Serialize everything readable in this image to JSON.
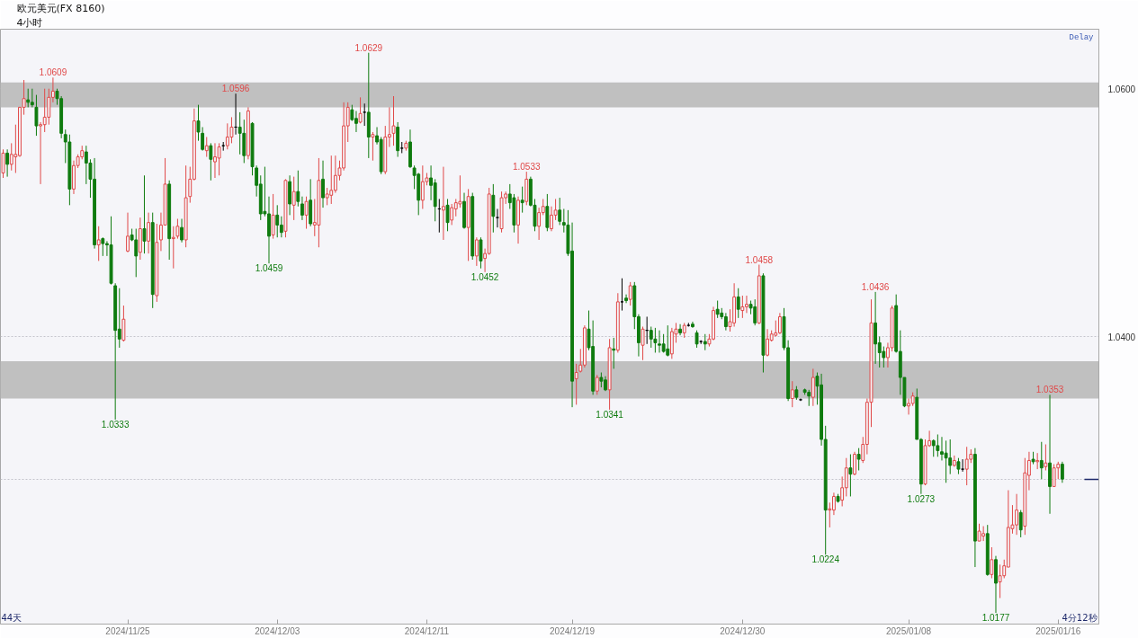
{
  "chart_data": {
    "type": "candlestick",
    "title": "欧元美元(FX 8160)",
    "subtitle": "4小时",
    "categories": [
      null,
      null,
      null,
      null,
      null,
      null,
      null,
      null,
      null,
      null,
      null,
      null,
      null,
      null,
      null,
      null,
      null,
      null,
      null,
      null,
      null,
      null,
      null,
      null,
      null,
      null,
      null,
      null,
      null,
      null,
      "2024/11/25",
      null,
      null,
      null,
      null,
      null,
      null,
      null,
      null,
      null,
      null,
      null,
      null,
      null,
      null,
      null,
      null,
      null,
      null,
      null,
      null,
      null,
      null,
      null,
      null,
      null,
      null,
      null,
      null,
      null,
      null,
      null,
      null,
      null,
      null,
      null,
      "2024/12/03",
      null,
      null,
      null,
      null,
      null,
      null,
      null,
      null,
      null,
      null,
      null,
      null,
      null,
      null,
      null,
      null,
      null,
      null,
      null,
      null,
      null,
      null,
      null,
      null,
      null,
      null,
      null,
      null,
      null,
      null,
      null,
      null,
      null,
      null,
      null,
      "2024/12/11",
      null,
      null,
      null,
      null,
      null,
      null,
      null,
      null,
      null,
      null,
      null,
      null,
      null,
      null,
      null,
      null,
      null,
      null,
      null,
      null,
      null,
      null,
      null,
      null,
      null,
      null,
      null,
      null,
      null,
      null,
      null,
      null,
      null,
      null,
      "2024/12/19",
      null,
      null,
      null,
      null,
      null,
      null,
      null,
      null,
      null,
      null,
      null,
      null,
      null,
      null,
      null,
      null,
      null,
      null,
      null,
      null,
      null,
      null,
      null,
      null,
      null,
      null,
      null,
      null,
      null,
      null,
      null,
      null,
      null,
      null,
      null,
      null,
      null,
      null,
      null,
      null,
      "2024/12/30",
      null,
      null,
      null,
      null,
      null,
      null,
      null,
      null,
      null,
      null,
      null,
      null,
      null,
      null,
      null,
      null,
      null,
      null,
      null,
      null,
      null,
      null,
      null,
      null,
      null,
      null,
      null,
      null,
      null,
      null,
      null,
      null,
      null,
      null,
      null,
      null,
      null,
      null,
      null,
      "2025/01/08",
      null,
      null,
      null,
      null,
      null,
      null,
      null,
      null,
      null,
      null,
      null,
      null,
      null,
      null,
      null,
      null,
      null,
      null,
      null,
      null,
      null,
      null,
      null,
      null,
      null,
      null,
      null,
      null,
      null,
      null,
      null,
      null,
      null,
      null,
      null,
      "2025/01/16",
      null
    ],
    "ohlc": [
      [
        1.0532,
        1.0551,
        1.0528,
        1.0548
      ],
      [
        1.0548,
        1.0551,
        1.0529,
        1.0539
      ],
      [
        1.0539,
        1.0556,
        1.0534,
        1.0547
      ],
      [
        1.0545,
        1.0571,
        1.0532,
        1.0547
      ],
      [
        1.0546,
        1.0585,
        1.0545,
        1.0585
      ],
      [
        1.0585,
        1.0607,
        1.0579,
        1.0592
      ],
      [
        1.0591,
        1.06,
        1.0585,
        1.0589
      ],
      [
        1.0589,
        1.06,
        1.0585,
        1.0587
      ],
      [
        1.0585,
        1.0595,
        1.0562,
        1.057
      ],
      [
        1.057,
        1.0573,
        1.0523,
        1.0571
      ],
      [
        1.0571,
        1.06,
        1.0565,
        1.0577
      ],
      [
        1.0577,
        1.06,
        1.0571,
        1.0593
      ],
      [
        1.0593,
        1.0609,
        1.0589,
        1.0598
      ],
      [
        1.0598,
        1.06,
        1.0587,
        1.0592
      ],
      [
        1.0592,
        1.0594,
        1.056,
        1.0564
      ],
      [
        1.0563,
        1.0567,
        1.054,
        1.0557
      ],
      [
        1.0557,
        1.0563,
        1.0506,
        1.0519
      ],
      [
        1.0519,
        1.0542,
        1.0515,
        1.0538
      ],
      [
        1.0538,
        1.0547,
        1.0536,
        1.0545
      ],
      [
        1.0545,
        1.0554,
        1.0543,
        1.055
      ],
      [
        1.0549,
        1.0554,
        1.0523,
        1.054
      ],
      [
        1.054,
        1.0543,
        1.0512,
        1.0527
      ],
      [
        1.0527,
        1.0544,
        1.0471,
        1.0474
      ],
      [
        1.0474,
        1.0489,
        1.0461,
        1.0478
      ],
      [
        1.0479,
        1.048,
        1.0465,
        1.0475
      ],
      [
        1.0475,
        1.0477,
        1.0465,
        1.0474
      ],
      [
        1.0474,
        1.0497,
        1.0442,
        1.0443
      ],
      [
        1.0441,
        1.0443,
        1.0333,
        1.0405
      ],
      [
        1.0406,
        1.0439,
        1.0391,
        1.0398
      ],
      [
        1.0397,
        1.0425,
        1.0396,
        1.0414
      ],
      [
        1.0469,
        1.05,
        1.0468,
        1.0481
      ],
      [
        1.0482,
        1.0487,
        1.0477,
        1.0478
      ],
      [
        1.0478,
        1.0487,
        1.0448,
        1.0465
      ],
      [
        1.0468,
        1.0496,
        1.0462,
        1.0487
      ],
      [
        1.0487,
        1.053,
        1.0467,
        1.0477
      ],
      [
        1.0477,
        1.05,
        1.0467,
        1.0492
      ],
      [
        1.0492,
        1.05,
        1.0423,
        1.0434
      ],
      [
        1.0433,
        1.0491,
        1.0428,
        1.0476
      ],
      [
        1.0478,
        1.05,
        1.0469,
        1.049
      ],
      [
        1.049,
        1.0544,
        1.049,
        1.0523
      ],
      [
        1.0523,
        1.0526,
        1.0462,
        1.0479
      ],
      [
        1.0479,
        1.0489,
        1.0455,
        1.048
      ],
      [
        1.0481,
        1.0495,
        1.0479,
        1.0489
      ],
      [
        1.0488,
        1.0495,
        1.0476,
        1.0478
      ],
      [
        1.0478,
        1.0538,
        1.0472,
        1.0512
      ],
      [
        1.0513,
        1.0537,
        1.0508,
        1.0527
      ],
      [
        1.0527,
        1.0584,
        1.0526,
        1.0574
      ],
      [
        1.0574,
        1.0587,
        1.0558,
        1.0565
      ],
      [
        1.0564,
        1.0569,
        1.055,
        1.0551
      ],
      [
        1.055,
        1.0561,
        1.0545,
        1.0554
      ],
      [
        1.0554,
        1.0556,
        1.0526,
        1.0543
      ],
      [
        1.0541,
        1.0556,
        1.0528,
        1.0545
      ],
      [
        1.0544,
        1.0556,
        1.053,
        1.0553
      ],
      [
        1.0554,
        1.0557,
        1.055,
        1.0554
      ],
      [
        1.0554,
        1.0572,
        1.0551,
        1.0561
      ],
      [
        1.0561,
        1.0577,
        1.0556,
        1.0569
      ],
      [
        1.0569,
        1.0596,
        1.0563,
        1.0569
      ],
      [
        1.0569,
        1.0581,
        1.0547,
        1.0564
      ],
      [
        1.0564,
        1.0575,
        1.054,
        1.0546
      ],
      [
        1.0546,
        1.0585,
        1.0543,
        1.0582
      ],
      [
        1.0572,
        1.0573,
        1.053,
        1.0537
      ],
      [
        1.0536,
        1.0538,
        1.0513,
        1.0522
      ],
      [
        1.0523,
        1.053,
        1.0494,
        1.0499
      ],
      [
        1.0501,
        1.0537,
        1.0497,
        1.0499
      ],
      [
        1.0499,
        1.0513,
        1.0459,
        1.0481
      ],
      [
        1.0482,
        1.0515,
        1.0479,
        1.0498
      ],
      [
        1.0498,
        1.0506,
        1.048,
        1.049
      ],
      [
        1.049,
        1.0497,
        1.048,
        1.0484
      ],
      [
        1.0485,
        1.0527,
        1.048,
        1.0526
      ],
      [
        1.0525,
        1.053,
        1.0498,
        1.0507
      ],
      [
        1.0506,
        1.0529,
        1.0494,
        1.0517
      ],
      [
        1.0517,
        1.0534,
        1.0505,
        1.0509
      ],
      [
        1.0507,
        1.0513,
        1.0494,
        1.0498
      ],
      [
        1.0498,
        1.0513,
        1.0487,
        1.0509
      ],
      [
        1.051,
        1.0527,
        1.0489,
        1.0491
      ],
      [
        1.049,
        1.0511,
        1.0481,
        1.0492
      ],
      [
        1.049,
        1.0544,
        1.0472,
        1.0526
      ],
      [
        1.0527,
        1.0542,
        1.0504,
        1.0512
      ],
      [
        1.0512,
        1.052,
        1.0506,
        1.0515
      ],
      [
        1.0514,
        1.0546,
        1.0507,
        1.0518
      ],
      [
        1.0518,
        1.0546,
        1.0516,
        1.053
      ],
      [
        1.053,
        1.0542,
        1.0526,
        1.0536
      ],
      [
        1.0536,
        1.0589,
        1.0534,
        1.057
      ],
      [
        1.057,
        1.0589,
        1.0557,
        1.0585
      ],
      [
        1.0583,
        1.0587,
        1.0574,
        1.0575
      ],
      [
        1.0576,
        1.0582,
        1.0565,
        1.0572
      ],
      [
        1.0573,
        1.0593,
        1.0572,
        1.058
      ],
      [
        1.0581,
        1.0588,
        1.057,
        1.0581
      ],
      [
        1.0581,
        1.0629,
        1.0544,
        1.0561
      ],
      [
        1.0561,
        1.0565,
        1.0542,
        1.0563
      ],
      [
        1.0562,
        1.0569,
        1.0555,
        1.0557
      ],
      [
        1.0559,
        1.0561,
        1.0531,
        1.0533
      ],
      [
        1.0533,
        1.057,
        1.0531,
        1.0561
      ],
      [
        1.0561,
        1.0585,
        1.0553,
        1.0563
      ],
      [
        1.0564,
        1.0594,
        1.0554,
        1.057
      ],
      [
        1.0569,
        1.0573,
        1.0545,
        1.055
      ],
      [
        1.0552,
        1.0557,
        1.0548,
        1.0552
      ],
      [
        1.0552,
        1.0558,
        1.055,
        1.0556
      ],
      [
        1.0557,
        1.0567,
        1.0536,
        1.0537
      ],
      [
        1.0536,
        1.0538,
        1.0519,
        1.053
      ],
      [
        1.0531,
        1.0532,
        1.0498,
        1.051
      ],
      [
        1.051,
        1.0538,
        1.0503,
        1.0525
      ],
      [
        1.0525,
        1.0532,
        1.0522,
        1.0528
      ],
      [
        1.0528,
        1.0538,
        1.051,
        1.0522
      ],
      [
        1.0524,
        1.0527,
        1.0493,
        1.0505
      ],
      [
        1.0503,
        1.0511,
        1.0484,
        1.0503
      ],
      [
        1.0502,
        1.0537,
        1.0478,
        1.0505
      ],
      [
        1.0506,
        1.0511,
        1.0485,
        1.0492
      ],
      [
        1.0494,
        1.0507,
        1.049,
        1.0504
      ],
      [
        1.0503,
        1.0511,
        1.0497,
        1.0508
      ],
      [
        1.0507,
        1.053,
        1.0504,
        1.0509
      ],
      [
        1.0509,
        1.0516,
        1.0487,
        1.0488
      ],
      [
        1.0488,
        1.0519,
        1.0461,
        1.0513
      ],
      [
        1.0513,
        1.0516,
        1.0462,
        1.0465
      ],
      [
        1.0465,
        1.048,
        1.0457,
        1.0478
      ],
      [
        1.0478,
        1.048,
        1.0455,
        1.0461
      ],
      [
        1.0463,
        1.0471,
        1.0452,
        1.0467
      ],
      [
        1.0467,
        1.052,
        1.0466,
        1.0515
      ],
      [
        1.0514,
        1.0523,
        1.0484,
        1.0497
      ],
      [
        1.0496,
        1.0503,
        1.0488,
        1.0496
      ],
      [
        1.0487,
        1.0517,
        1.0484,
        1.0512
      ],
      [
        1.0512,
        1.0517,
        1.0507,
        1.0515
      ],
      [
        1.0515,
        1.0523,
        1.0503,
        1.0508
      ],
      [
        1.0512,
        1.0515,
        1.0484,
        1.049
      ],
      [
        1.049,
        1.0513,
        1.0475,
        1.051
      ],
      [
        1.051,
        1.0521,
        1.05,
        1.0508
      ],
      [
        1.0509,
        1.0533,
        1.0506,
        1.0527
      ],
      [
        1.0527,
        1.0529,
        1.0505,
        1.0506
      ],
      [
        1.0506,
        1.0511,
        1.0485,
        1.0489
      ],
      [
        1.0489,
        1.0504,
        1.0478,
        1.05
      ],
      [
        1.05,
        1.0511,
        1.0498,
        1.0505
      ],
      [
        1.0505,
        1.0515,
        1.0485,
        1.0488
      ],
      [
        1.0487,
        1.0505,
        1.0485,
        1.0498
      ],
      [
        1.0498,
        1.0511,
        1.0494,
        1.0502
      ],
      [
        1.0502,
        1.0512,
        1.049,
        1.0493
      ],
      [
        1.0492,
        1.0503,
        1.0484,
        1.049
      ],
      [
        1.049,
        1.0502,
        1.0465,
        1.0467
      ],
      [
        1.0469,
        1.0492,
        1.0343,
        1.0364
      ],
      [
        1.0366,
        1.0378,
        1.0345,
        1.0371
      ],
      [
        1.0372,
        1.039,
        1.0371,
        1.0377
      ],
      [
        1.0377,
        1.0409,
        1.0375,
        1.0407
      ],
      [
        1.0406,
        1.0421,
        1.0389,
        1.0391
      ],
      [
        1.0392,
        1.0413,
        1.0353,
        1.0356
      ],
      [
        1.0356,
        1.0369,
        1.0353,
        1.0367
      ],
      [
        1.0367,
        1.0371,
        1.0359,
        1.0364
      ],
      [
        1.0365,
        1.0368,
        1.0356,
        1.0357
      ],
      [
        1.0357,
        1.0398,
        1.0341,
        1.0391
      ],
      [
        1.039,
        1.0399,
        1.0374,
        1.0389
      ],
      [
        1.0389,
        1.0435,
        1.0387,
        1.0428
      ],
      [
        1.0428,
        1.0447,
        1.0421,
        1.0428
      ],
      [
        1.0431,
        1.0434,
        1.0427,
        1.0429
      ],
      [
        1.043,
        1.0444,
        1.0425,
        1.0441
      ],
      [
        1.0441,
        1.0444,
        1.0406,
        1.0416
      ],
      [
        1.0416,
        1.0418,
        1.0384,
        1.0395
      ],
      [
        1.0393,
        1.0408,
        1.0381,
        1.0406
      ],
      [
        1.0405,
        1.0416,
        1.0394,
        1.0405
      ],
      [
        1.0405,
        1.0408,
        1.0391,
        1.0398
      ],
      [
        1.0398,
        1.0407,
        1.0387,
        1.0395
      ],
      [
        1.0394,
        1.0405,
        1.0387,
        1.0393
      ],
      [
        1.0394,
        1.0402,
        1.0387,
        1.0388
      ],
      [
        1.039,
        1.0409,
        1.0384,
        1.0385
      ],
      [
        1.0386,
        1.0407,
        1.0382,
        1.0404
      ],
      [
        1.0402,
        1.0411,
        1.0395,
        1.0406
      ],
      [
        1.0406,
        1.041,
        1.0401,
        1.0403
      ],
      [
        1.0403,
        1.0411,
        1.0399,
        1.0409
      ],
      [
        1.0409,
        1.0411,
        1.0408,
        1.0409
      ],
      [
        1.041,
        1.0412,
        1.0407,
        1.0408
      ],
      [
        1.0403,
        1.0405,
        1.0391,
        1.0394
      ],
      [
        1.0396,
        1.0397,
        1.0394,
        1.0396
      ],
      [
        1.0396,
        1.0402,
        1.0389,
        1.0394
      ],
      [
        1.0394,
        1.0402,
        1.0392,
        1.0398
      ],
      [
        1.0398,
        1.0424,
        1.0397,
        1.0421
      ],
      [
        1.0422,
        1.0429,
        1.0415,
        1.0418
      ],
      [
        1.0419,
        1.0423,
        1.0414,
        1.0416
      ],
      [
        1.0416,
        1.0419,
        1.0405,
        1.0408
      ],
      [
        1.0408,
        1.0422,
        1.0404,
        1.0412
      ],
      [
        1.0411,
        1.0443,
        1.0408,
        1.0432
      ],
      [
        1.0432,
        1.0439,
        1.0415,
        1.0422
      ],
      [
        1.0421,
        1.0433,
        1.0415,
        1.0424
      ],
      [
        1.0424,
        1.0433,
        1.0419,
        1.0426
      ],
      [
        1.0426,
        1.0429,
        1.0418,
        1.0423
      ],
      [
        1.0424,
        1.043,
        1.0409,
        1.0411
      ],
      [
        1.0411,
        1.0458,
        1.041,
        1.0449
      ],
      [
        1.0449,
        1.0451,
        1.0371,
        1.0385
      ],
      [
        1.0385,
        1.0406,
        1.0384,
        1.0398
      ],
      [
        1.0397,
        1.0405,
        1.0396,
        1.0402
      ],
      [
        1.0401,
        1.0413,
        1.04,
        1.0403
      ],
      [
        1.0403,
        1.0419,
        1.0402,
        1.0416
      ],
      [
        1.0416,
        1.0423,
        1.0389,
        1.0391
      ],
      [
        1.0391,
        1.0397,
        1.0348,
        1.035
      ],
      [
        1.035,
        1.0364,
        1.0343,
        1.0357
      ],
      [
        1.0357,
        1.036,
        1.0349,
        1.0351
      ],
      [
        1.0349,
        1.035,
        1.0348,
        1.0349
      ],
      [
        1.0357,
        1.0358,
        1.0353,
        1.0355
      ],
      [
        1.0355,
        1.0357,
        1.0344,
        1.0352
      ],
      [
        1.0351,
        1.0374,
        1.0344,
        1.0367
      ],
      [
        1.0368,
        1.0371,
        1.0345,
        1.036
      ],
      [
        1.0361,
        1.037,
        1.0312,
        1.0317
      ],
      [
        1.0317,
        1.0328,
        1.0224,
        1.026
      ],
      [
        1.026,
        1.0266,
        1.0246,
        1.0261
      ],
      [
        1.026,
        1.0274,
        1.0256,
        1.0271
      ],
      [
        1.0271,
        1.0273,
        1.0266,
        1.0267
      ],
      [
        1.0268,
        1.0287,
        1.0263,
        1.0278
      ],
      [
        1.0278,
        1.0302,
        1.0271,
        1.0294
      ],
      [
        1.0294,
        1.0305,
        1.0271,
        1.0289
      ],
      [
        1.0289,
        1.0307,
        1.0288,
        1.0305
      ],
      [
        1.0305,
        1.031,
        1.0292,
        1.0301
      ],
      [
        1.03,
        1.0319,
        1.0298,
        1.0313
      ],
      [
        1.0313,
        1.035,
        1.0305,
        1.0347
      ],
      [
        1.0347,
        1.043,
        1.0327,
        1.0411
      ],
      [
        1.0411,
        1.0436,
        1.0378,
        1.0394
      ],
      [
        1.0395,
        1.04,
        1.0375,
        1.0387
      ],
      [
        1.0388,
        1.0392,
        1.0375,
        1.0383
      ],
      [
        1.0383,
        1.0395,
        1.0375,
        1.0391
      ],
      [
        1.0391,
        1.0425,
        1.0388,
        1.0423
      ],
      [
        1.0425,
        1.0434,
        1.0387,
        1.0388
      ],
      [
        1.0388,
        1.0405,
        1.0353,
        1.0367
      ],
      [
        1.0367,
        1.0367,
        1.0343,
        1.0344
      ],
      [
        1.0344,
        1.035,
        1.0337,
        1.0346
      ],
      [
        1.0346,
        1.0355,
        1.0344,
        1.0352
      ],
      [
        1.0351,
        1.0358,
        1.0317,
        1.0317
      ],
      [
        1.0317,
        1.0318,
        1.0273,
        1.0281
      ],
      [
        1.0281,
        1.0317,
        1.028,
        1.0312
      ],
      [
        1.0312,
        1.0324,
        1.0311,
        1.0316
      ],
      [
        1.0316,
        1.0317,
        1.0303,
        1.0312
      ],
      [
        1.0312,
        1.0321,
        1.0303,
        1.0308
      ],
      [
        1.0307,
        1.0319,
        1.03,
        1.0305
      ],
      [
        1.0306,
        1.0316,
        1.0282,
        1.0302
      ],
      [
        1.0302,
        1.0317,
        1.0289,
        1.0296
      ],
      [
        1.0296,
        1.0304,
        1.0295,
        1.03
      ],
      [
        1.0299,
        1.0302,
        1.0289,
        1.0293
      ],
      [
        1.0293,
        1.0301,
        1.0291,
        1.0293
      ],
      [
        1.0293,
        1.0311,
        1.028,
        1.0301
      ],
      [
        1.0301,
        1.0309,
        1.0298,
        1.0305
      ],
      [
        1.0305,
        1.031,
        1.0214,
        1.0235
      ],
      [
        1.0235,
        1.0249,
        1.0235,
        1.0243
      ],
      [
        1.0239,
        1.0247,
        1.0235,
        1.0241
      ],
      [
        1.0241,
        1.0248,
        1.0207,
        1.0208
      ],
      [
        1.0208,
        1.023,
        1.0205,
        1.022
      ],
      [
        1.022,
        1.0223,
        1.0177,
        1.0201
      ],
      [
        1.0202,
        1.0216,
        1.0189,
        1.0207
      ],
      [
        1.0207,
        1.022,
        1.0205,
        1.0215
      ],
      [
        1.0214,
        1.0276,
        1.0214,
        1.0246
      ],
      [
        1.0245,
        1.0264,
        1.0241,
        1.0248
      ],
      [
        1.0248,
        1.0273,
        1.024,
        1.026
      ],
      [
        1.0258,
        1.026,
        1.0238,
        1.0244
      ],
      [
        1.0247,
        1.0302,
        1.024,
        1.029
      ],
      [
        1.0288,
        1.0307,
        1.0276,
        1.03
      ],
      [
        1.0301,
        1.0307,
        1.0297,
        1.0299
      ],
      [
        1.0299,
        1.0306,
        1.0293,
        1.03
      ],
      [
        1.03,
        1.0315,
        1.0285,
        1.0294
      ],
      [
        1.0295,
        1.0313,
        1.0292,
        1.0298
      ],
      [
        1.0298,
        1.0353,
        1.0257,
        1.0279
      ],
      [
        1.0279,
        1.0297,
        1.0279,
        1.0294
      ],
      [
        1.0294,
        1.0299,
        1.0285,
        1.0297
      ],
      [
        1.0297,
        1.0299,
        1.0282,
        1.0285
      ]
    ],
    "colors": [
      "#e04848",
      "#0f7b0f",
      "#e04848",
      "#e04848",
      "#e04848",
      "#e04848",
      "#0f7b0f",
      "#0f7b0f",
      "#0f7b0f",
      "#e04848",
      "#e04848",
      "#e04848",
      "#e04848",
      "#0f7b0f",
      "#0f7b0f",
      "#0f7b0f",
      "#0f7b0f",
      "#e04848",
      "#e04848",
      "#e04848",
      "#0f7b0f",
      "#0f7b0f",
      "#0f7b0f",
      "#e04848",
      "#0f7b0f",
      "#0f7b0f",
      "#0f7b0f",
      "#0f7b0f",
      "#0f7b0f",
      "#e04848",
      "#e04848",
      "#0f7b0f",
      "#0f7b0f",
      "#e04848",
      "#0f7b0f",
      "#e04848",
      "#0f7b0f",
      "#e04848",
      "#e04848",
      "#e04848",
      "#0f7b0f",
      "#e04848",
      "#e04848",
      "#0f7b0f",
      "#e04848",
      "#e04848",
      "#e04848",
      "#0f7b0f",
      "#0f7b0f",
      "#e04848",
      "#0f7b0f",
      "#e04848",
      "#e04848",
      "#000000",
      "#e04848",
      "#e04848",
      "#000000",
      "#0f7b0f",
      "#0f7b0f",
      "#e04848",
      "#0f7b0f",
      "#0f7b0f",
      "#0f7b0f",
      "#0f7b0f",
      "#0f7b0f",
      "#e04848",
      "#0f7b0f",
      "#0f7b0f",
      "#e04848",
      "#0f7b0f",
      "#e04848",
      "#0f7b0f",
      "#0f7b0f",
      "#e04848",
      "#0f7b0f",
      "#e04848",
      "#e04848",
      "#0f7b0f",
      "#e04848",
      "#e04848",
      "#e04848",
      "#e04848",
      "#e04848",
      "#e04848",
      "#0f7b0f",
      "#0f7b0f",
      "#e04848",
      "#000000",
      "#0f7b0f",
      "#e04848",
      "#0f7b0f",
      "#0f7b0f",
      "#e04848",
      "#e04848",
      "#e04848",
      "#0f7b0f",
      "#000000",
      "#e04848",
      "#0f7b0f",
      "#0f7b0f",
      "#0f7b0f",
      "#e04848",
      "#e04848",
      "#0f7b0f",
      "#0f7b0f",
      "#000000",
      "#e04848",
      "#0f7b0f",
      "#e04848",
      "#e04848",
      "#e04848",
      "#0f7b0f",
      "#e04848",
      "#0f7b0f",
      "#e04848",
      "#0f7b0f",
      "#e04848",
      "#e04848",
      "#0f7b0f",
      "#000000",
      "#e04848",
      "#e04848",
      "#0f7b0f",
      "#0f7b0f",
      "#e04848",
      "#0f7b0f",
      "#e04848",
      "#0f7b0f",
      "#0f7b0f",
      "#e04848",
      "#e04848",
      "#0f7b0f",
      "#e04848",
      "#e04848",
      "#0f7b0f",
      "#0f7b0f",
      "#0f7b0f",
      "#0f7b0f",
      "#e04848",
      "#e04848",
      "#e04848",
      "#0f7b0f",
      "#0f7b0f",
      "#e04848",
      "#0f7b0f",
      "#0f7b0f",
      "#e04848",
      "#0f7b0f",
      "#e04848",
      "#000000",
      "#0f7b0f",
      "#e04848",
      "#0f7b0f",
      "#0f7b0f",
      "#e04848",
      "#000000",
      "#0f7b0f",
      "#0f7b0f",
      "#0f7b0f",
      "#0f7b0f",
      "#0f7b0f",
      "#e04848",
      "#e04848",
      "#0f7b0f",
      "#e04848",
      "#000000",
      "#0f7b0f",
      "#0f7b0f",
      "#000000",
      "#0f7b0f",
      "#e04848",
      "#e04848",
      "#0f7b0f",
      "#0f7b0f",
      "#0f7b0f",
      "#e04848",
      "#e04848",
      "#0f7b0f",
      "#e04848",
      "#e04848",
      "#0f7b0f",
      "#0f7b0f",
      "#e04848",
      "#0f7b0f",
      "#e04848",
      "#e04848",
      "#e04848",
      "#e04848",
      "#0f7b0f",
      "#0f7b0f",
      "#e04848",
      "#0f7b0f",
      "#000000",
      "#0f7b0f",
      "#0f7b0f",
      "#e04848",
      "#0f7b0f",
      "#0f7b0f",
      "#0f7b0f",
      "#e04848",
      "#e04848",
      "#0f7b0f",
      "#e04848",
      "#e04848",
      "#0f7b0f",
      "#e04848",
      "#0f7b0f",
      "#e04848",
      "#e04848",
      "#e04848",
      "#0f7b0f",
      "#0f7b0f",
      "#0f7b0f",
      "#e04848",
      "#e04848",
      "#0f7b0f",
      "#0f7b0f",
      "#0f7b0f",
      "#e04848",
      "#e04848",
      "#0f7b0f",
      "#0f7b0f",
      "#e04848",
      "#e04848",
      "#0f7b0f",
      "#0f7b0f",
      "#0f7b0f",
      "#0f7b0f",
      "#0f7b0f",
      "#e04848",
      "#0f7b0f",
      "#000000",
      "#e04848",
      "#e04848",
      "#0f7b0f",
      "#e04848",
      "#e04848",
      "#0f7b0f",
      "#e04848",
      "#0f7b0f",
      "#e04848",
      "#e04848",
      "#e04848",
      "#e04848",
      "#e04848",
      "#0f7b0f",
      "#e04848",
      "#e04848",
      "#0f7b0f",
      "#e04848",
      "#0f7b0f",
      "#e04848",
      "#0f7b0f",
      "#e04848",
      "#e04848",
      "#0f7b0f"
    ],
    "ylim": [
      1.0168,
      1.0648
    ],
    "yticks": [
      {
        "value": 1.06,
        "label": "1.0600"
      },
      {
        "value": 1.04,
        "label": "1.0400"
      },
      {
        "value": 1.0285,
        "label": null
      }
    ],
    "grid": "y",
    "bands": [
      {
        "axis": "y",
        "from": 1.0585,
        "to": 1.0605,
        "color": "#c0c0c0"
      },
      {
        "axis": "y",
        "from": 1.035,
        "to": 1.038,
        "color": "#c0c0c0"
      }
    ],
    "annotations": [
      "Delay",
      "44天",
      "4分12秒",
      {
        "text": "1.0609",
        "y": 1.0609
      },
      {
        "text": "1.0596",
        "y": 1.0596
      },
      {
        "text": "1.0629",
        "y": 1.0629
      },
      {
        "text": "1.0333",
        "y": 1.0333
      },
      {
        "text": "1.0459",
        "y": 1.0459
      },
      {
        "text": "1.0533",
        "y": 1.0533
      },
      {
        "text": "1.0452",
        "y": 1.0452
      },
      {
        "text": "1.0341",
        "y": 1.0341
      },
      {
        "text": "1.0458",
        "y": 1.0458
      },
      {
        "text": "1.0436",
        "y": 1.0436
      },
      {
        "text": "1.0224",
        "y": 1.0224
      },
      {
        "text": "1.0273",
        "y": 1.0273
      },
      {
        "text": "1.0177",
        "y": 1.0177
      },
      {
        "text": "1.0353",
        "y": 1.0353
      }
    ]
  }
}
